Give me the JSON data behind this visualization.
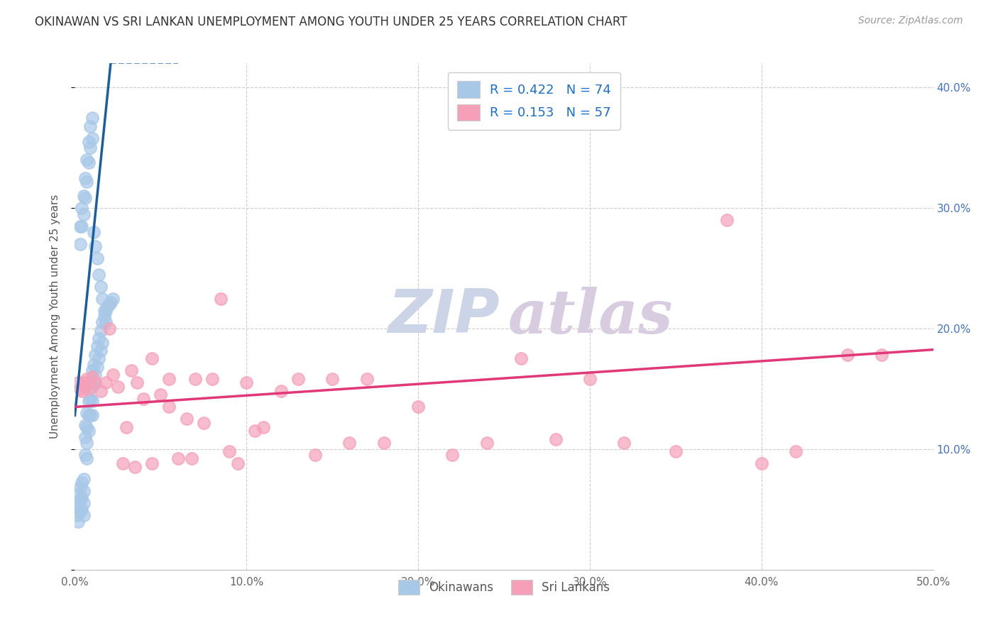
{
  "title": "OKINAWAN VS SRI LANKAN UNEMPLOYMENT AMONG YOUTH UNDER 25 YEARS CORRELATION CHART",
  "source": "Source: ZipAtlas.com",
  "ylabel": "Unemployment Among Youth under 25 years",
  "xlim": [
    0.0,
    0.5
  ],
  "ylim": [
    0.0,
    0.42
  ],
  "xticks": [
    0.0,
    0.1,
    0.2,
    0.3,
    0.4,
    0.5
  ],
  "yticks": [
    0.0,
    0.1,
    0.2,
    0.3,
    0.4
  ],
  "ytick_labels_right": [
    "",
    "10.0%",
    "20.0%",
    "30.0%",
    "40.0%"
  ],
  "xtick_labels": [
    "0.0%",
    "10.0%",
    "20.0%",
    "30.0%",
    "40.0%",
    "50.0%"
  ],
  "okinawan_R": 0.422,
  "okinawan_N": 74,
  "srilankan_R": 0.153,
  "srilankan_N": 57,
  "okinawan_color": "#a8c8e8",
  "srilankan_color": "#f5a0b8",
  "okinawan_line_color": "#1a5fa0",
  "srilankan_line_color": "#e03878",
  "legend_R_color": "#1a6fcc",
  "background_color": "#ffffff",
  "grid_color": "#cccccc",
  "title_color": "#333333",
  "okinawan_x": [
    0.001,
    0.001,
    0.002,
    0.002,
    0.002,
    0.003,
    0.003,
    0.003,
    0.004,
    0.004,
    0.004,
    0.005,
    0.005,
    0.005,
    0.005,
    0.006,
    0.006,
    0.006,
    0.007,
    0.007,
    0.007,
    0.007,
    0.008,
    0.008,
    0.008,
    0.009,
    0.009,
    0.009,
    0.01,
    0.01,
    0.01,
    0.01,
    0.011,
    0.011,
    0.012,
    0.012,
    0.013,
    0.013,
    0.014,
    0.014,
    0.015,
    0.015,
    0.016,
    0.016,
    0.017,
    0.018,
    0.019,
    0.02,
    0.021,
    0.022,
    0.003,
    0.003,
    0.004,
    0.004,
    0.005,
    0.005,
    0.006,
    0.006,
    0.007,
    0.007,
    0.008,
    0.008,
    0.009,
    0.009,
    0.01,
    0.01,
    0.011,
    0.012,
    0.013,
    0.014,
    0.015,
    0.016,
    0.017,
    0.018
  ],
  "okinawan_y": [
    0.055,
    0.045,
    0.062,
    0.05,
    0.04,
    0.068,
    0.058,
    0.048,
    0.072,
    0.06,
    0.05,
    0.075,
    0.065,
    0.055,
    0.045,
    0.12,
    0.11,
    0.095,
    0.13,
    0.118,
    0.105,
    0.092,
    0.14,
    0.128,
    0.115,
    0.155,
    0.142,
    0.128,
    0.165,
    0.152,
    0.14,
    0.128,
    0.17,
    0.155,
    0.178,
    0.162,
    0.185,
    0.168,
    0.192,
    0.175,
    0.198,
    0.182,
    0.205,
    0.188,
    0.21,
    0.215,
    0.218,
    0.22,
    0.222,
    0.225,
    0.285,
    0.27,
    0.3,
    0.285,
    0.31,
    0.295,
    0.325,
    0.308,
    0.34,
    0.322,
    0.355,
    0.338,
    0.368,
    0.35,
    0.375,
    0.358,
    0.28,
    0.268,
    0.258,
    0.245,
    0.235,
    0.225,
    0.215,
    0.205
  ],
  "srilankan_x": [
    0.002,
    0.003,
    0.004,
    0.005,
    0.006,
    0.007,
    0.008,
    0.01,
    0.012,
    0.015,
    0.018,
    0.02,
    0.022,
    0.025,
    0.028,
    0.03,
    0.033,
    0.036,
    0.04,
    0.045,
    0.05,
    0.055,
    0.06,
    0.065,
    0.07,
    0.075,
    0.08,
    0.09,
    0.1,
    0.11,
    0.12,
    0.13,
    0.14,
    0.15,
    0.16,
    0.17,
    0.18,
    0.2,
    0.22,
    0.24,
    0.26,
    0.28,
    0.3,
    0.32,
    0.35,
    0.38,
    0.4,
    0.42,
    0.45,
    0.47,
    0.035,
    0.045,
    0.055,
    0.068,
    0.085,
    0.095,
    0.105
  ],
  "srilankan_y": [
    0.155,
    0.15,
    0.148,
    0.155,
    0.152,
    0.158,
    0.15,
    0.16,
    0.155,
    0.148,
    0.155,
    0.2,
    0.162,
    0.152,
    0.088,
    0.118,
    0.165,
    0.155,
    0.142,
    0.175,
    0.145,
    0.158,
    0.092,
    0.125,
    0.158,
    0.122,
    0.158,
    0.098,
    0.155,
    0.118,
    0.148,
    0.158,
    0.095,
    0.158,
    0.105,
    0.158,
    0.105,
    0.135,
    0.095,
    0.105,
    0.175,
    0.108,
    0.158,
    0.105,
    0.098,
    0.29,
    0.088,
    0.098,
    0.178,
    0.178,
    0.085,
    0.088,
    0.135,
    0.092,
    0.225,
    0.088,
    0.115
  ],
  "ok_line_x0": 0.0,
  "ok_line_x_solid_end": 0.021,
  "ok_line_x_dash_end": 0.06,
  "ok_line_slope": 14.0,
  "ok_line_intercept": 0.128,
  "sl_line_x0": 0.0,
  "sl_line_x1": 0.5,
  "sl_line_slope": 0.095,
  "sl_line_intercept": 0.135
}
